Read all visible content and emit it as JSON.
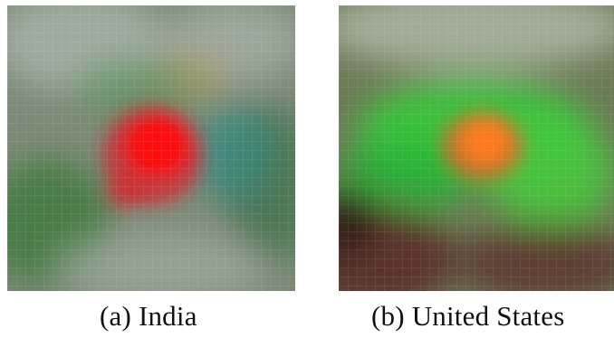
{
  "figure": {
    "panels": [
      {
        "caption": "(a) India",
        "colors": {
          "base": "#7c8a76",
          "blob": "#ff0a10",
          "blob_glow": "#d8222b",
          "greens": [
            "#3f7a3c",
            "#56955a",
            "#2f6a3a"
          ],
          "teal": "#2e8d86",
          "haze": "#a9b3ab",
          "warm": "#b49a5e"
        }
      },
      {
        "caption": "(b) United States",
        "colors": {
          "base": "#6c7a55",
          "blob": "#ff7a1e",
          "blob_glow": "#ea5a24",
          "greens": [
            "#2fd33a",
            "#44c93b",
            "#1fb532"
          ],
          "brown": "#5a2f2a",
          "dark": "#2a1a18",
          "haze": "#b6bdb0"
        }
      }
    ]
  }
}
